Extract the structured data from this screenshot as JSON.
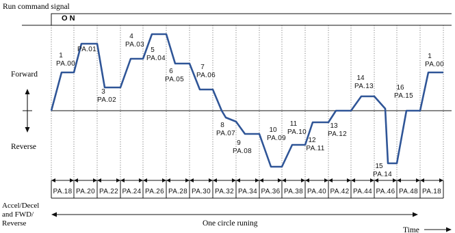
{
  "title": {
    "run_command": "Run command signal",
    "on": "O N"
  },
  "axis_labels": {
    "forward": "Forward",
    "reverse": "Reverse",
    "accel": [
      "Accel/Decel",
      "and FWD/",
      "Reverse"
    ],
    "time": "Time",
    "one_circle": "One circle runing"
  },
  "colors": {
    "profile": "#2f5597",
    "ink": "#111111",
    "guide": "#444444"
  },
  "steps": [
    {
      "num": "1",
      "param": "PA.00"
    },
    {
      "num": "",
      "param": "PA.01"
    },
    {
      "num": "3",
      "param": "PA.02"
    },
    {
      "num": "4",
      "param": "PA.03"
    },
    {
      "num": "5",
      "param": "PA.04"
    },
    {
      "num": "6",
      "param": "PA.05"
    },
    {
      "num": "7",
      "param": "PA.06"
    },
    {
      "num": "8",
      "param": "PA.07"
    },
    {
      "num": "9",
      "param": "PA.08"
    },
    {
      "num": "10",
      "param": "PA.09"
    },
    {
      "num": "11",
      "param": "PA.10"
    },
    {
      "num": "12",
      "param": "PA.11"
    },
    {
      "num": "13",
      "param": "PA.12"
    },
    {
      "num": "14",
      "param": "PA.13"
    },
    {
      "num": "15",
      "param": "PA.14"
    },
    {
      "num": "16",
      "param": "PA.15"
    },
    {
      "num": "1",
      "param": "PA.00"
    }
  ],
  "accel_params": [
    "PA.18",
    "PA.20",
    "PA.22",
    "PA.24",
    "PA.26",
    "PA.28",
    "PA.30",
    "PA.32",
    "PA.34",
    "PA.36",
    "PA.38",
    "PA.40",
    "PA.42",
    "PA.44",
    "PA.46",
    "PA.48",
    "PA.18"
  ]
}
